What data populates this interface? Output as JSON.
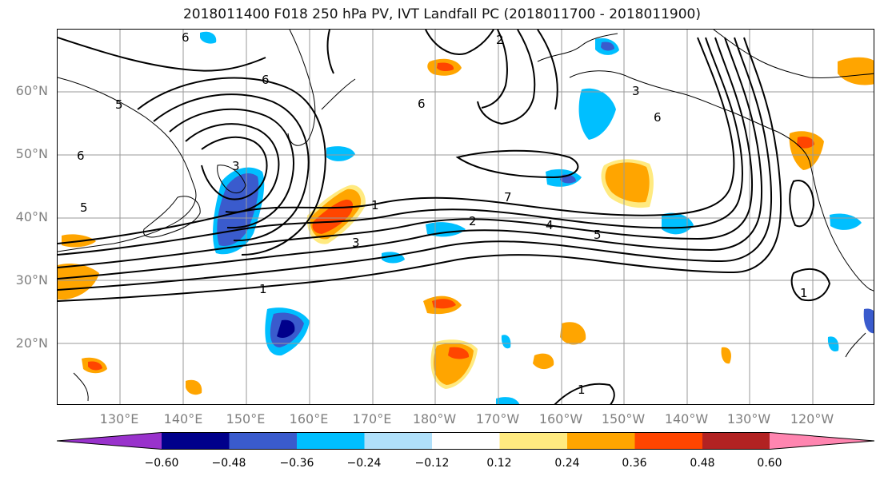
{
  "title": "2018011400 F018 250 hPa PV, IVT Landfall PC (2018011700 - 2018011900)",
  "lat_labels": [
    "60°N",
    "50°N",
    "40°N",
    "30°N",
    "20°N"
  ],
  "lon_labels": [
    "130°E",
    "140°E",
    "150°E",
    "160°E",
    "170°E",
    "180°W",
    "170°W",
    "160°W",
    "150°W",
    "140°W",
    "130°W",
    "120°W"
  ],
  "contour_labels": [
    "6",
    "6",
    "6",
    "5",
    "5",
    "3",
    "3",
    "1",
    "2",
    "7",
    "2",
    "4",
    "5",
    "3",
    "6",
    "1",
    "1",
    "1",
    "6"
  ],
  "colorbar": {
    "ticks": [
      "−0.60",
      "−0.48",
      "−0.36",
      "−0.24",
      "−0.12",
      "0.12",
      "0.24",
      "0.36",
      "0.48",
      "0.60"
    ],
    "colors": [
      "#9932cc",
      "#00008b",
      "#3a5bcd",
      "#00bfff",
      "#b0e0fa",
      "#ffffff",
      "#ffea80",
      "#ffa500",
      "#ff4500",
      "#b22222",
      "#ff85b0"
    ]
  }
}
